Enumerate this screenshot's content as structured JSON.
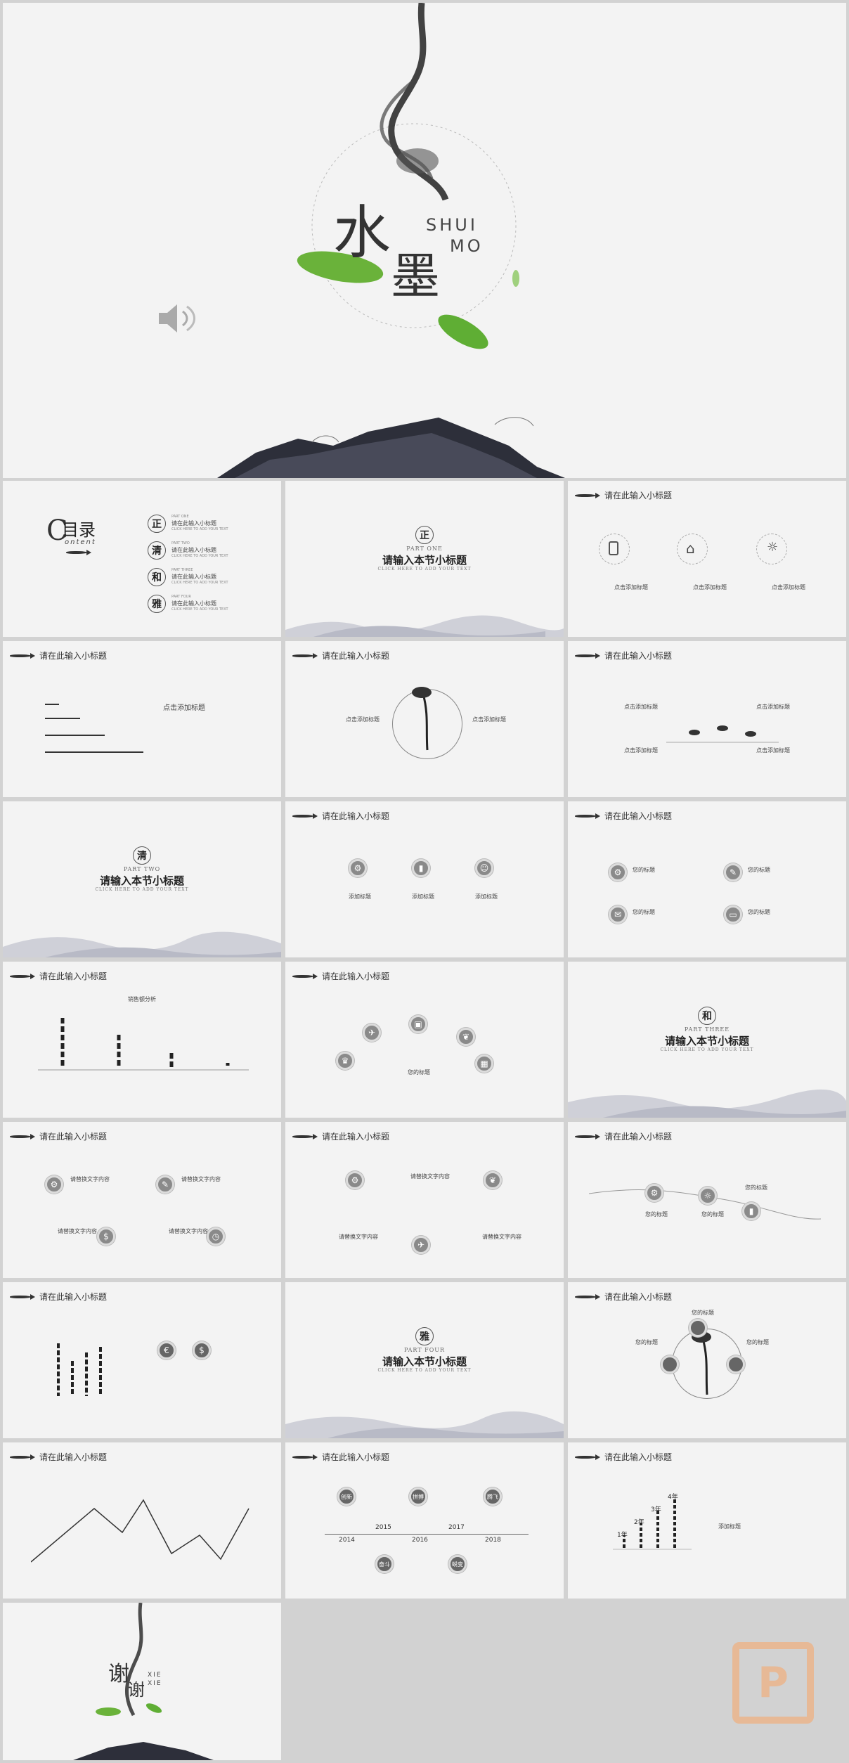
{
  "cover": {
    "char1": "水",
    "char2": "墨",
    "pin1": "SHUI",
    "pin2": "MO",
    "speaker": "speaker-icon"
  },
  "toc": {
    "mu": "目录",
    "content": "ontent",
    "c": "C",
    "items": [
      {
        "seal": "正",
        "label": "请在此输入小标题",
        "part": "PART ONE",
        "tip": "CLICK HERE TO ADD YOUR TEXT"
      },
      {
        "seal": "清",
        "label": "请在此输入小标题",
        "part": "PART TWO",
        "tip": "CLICK HERE TO ADD YOUR TEXT"
      },
      {
        "seal": "和",
        "label": "请在此输入小标题",
        "part": "PART THREE",
        "tip": "CLICK HERE TO ADD YOUR TEXT"
      },
      {
        "seal": "雅",
        "label": "请在此输入小标题",
        "part": "PART FOUR",
        "tip": "CLICK HERE TO ADD YOUR TEXT"
      }
    ]
  },
  "section": {
    "title": "请输入本节小标题",
    "tip": "CLICK HERE TO ADD YOUR TEXT",
    "s1": {
      "seal": "正",
      "part": "PART ONE"
    },
    "s2": {
      "seal": "清",
      "part": "PART TWO"
    },
    "s3": {
      "seal": "和",
      "part": "PART THREE"
    },
    "s4": {
      "seal": "雅",
      "part": "PART FOUR"
    }
  },
  "slide_title": "请在此输入小标题",
  "click_add": "点击添加标题",
  "add_title": "添加标题",
  "your_title": "您的标题",
  "edit_text": "请替换文字内容",
  "sales": "销售额分析",
  "years": [
    "2014",
    "2015",
    "2016",
    "2017",
    "2018"
  ],
  "timeline_tags": [
    "创新",
    "拼搏",
    "腾飞",
    "奋斗",
    "蜕变"
  ],
  "steps": [
    "1年",
    "2年",
    "3年",
    "4年"
  ],
  "thanks": {
    "c1": "谢",
    "c2": "谢",
    "p1": "XIE",
    "p2": "XIE"
  },
  "watermark": "P"
}
